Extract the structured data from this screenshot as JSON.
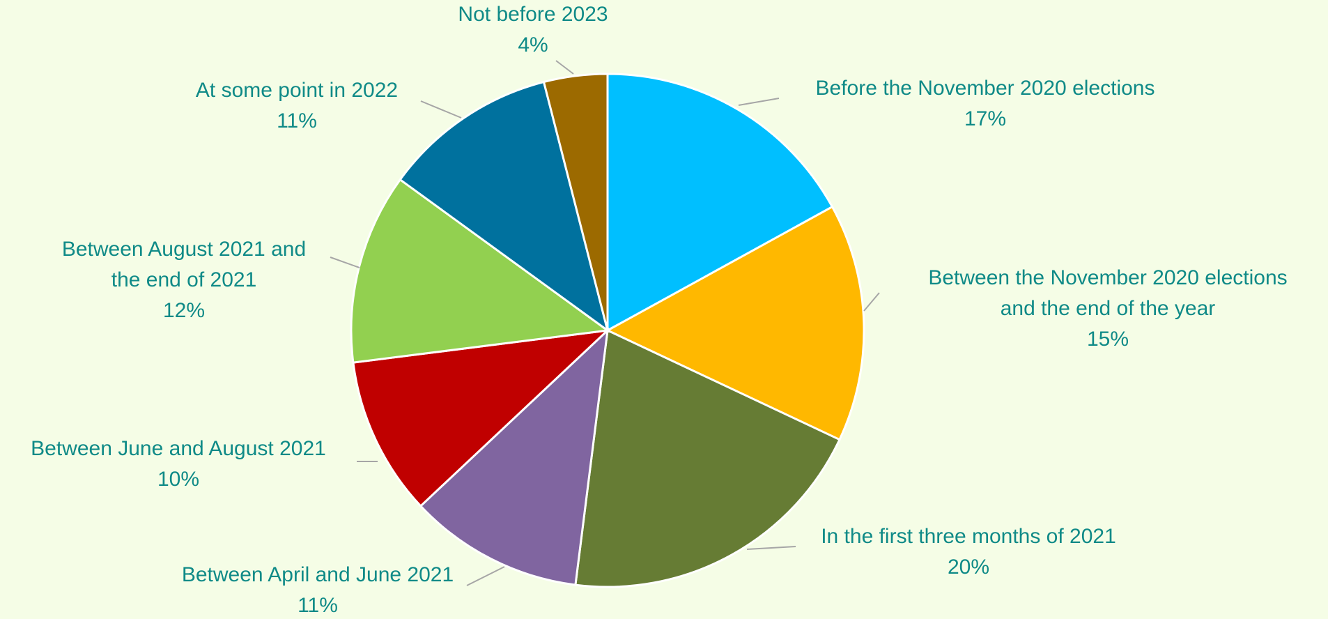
{
  "chart_data": {
    "type": "pie",
    "start": "12 o'clock",
    "direction": "clockwise",
    "legend": "none",
    "data_labels": "outside with leader lines",
    "slices": [
      {
        "label_lines": [
          "Before the November 2020 elections"
        ],
        "value": 17,
        "value_label": "17%",
        "color": "#00bfff"
      },
      {
        "label_lines": [
          "Between the November 2020 elections",
          "and the end of the year"
        ],
        "value": 15,
        "value_label": "15%",
        "color": "#ffb800"
      },
      {
        "label_lines": [
          "In the first three months of 2021"
        ],
        "value": 20,
        "value_label": "20%",
        "color": "#667c34"
      },
      {
        "label_lines": [
          "Between April and June 2021"
        ],
        "value": 11,
        "value_label": "11%",
        "color": "#8065a0"
      },
      {
        "label_lines": [
          "Between June and August 2021"
        ],
        "value": 10,
        "value_label": "10%",
        "color": "#c00000"
      },
      {
        "label_lines": [
          "Between August 2021 and",
          "the end of 2021"
        ],
        "value": 12,
        "value_label": "12%",
        "color": "#92d050"
      },
      {
        "label_lines": [
          "At some point in 2022"
        ],
        "value": 11,
        "value_label": "11%",
        "color": "#00719e"
      },
      {
        "label_lines": [
          "Not before 2023"
        ],
        "value": 4,
        "value_label": "4%",
        "color": "#9c6a00"
      }
    ],
    "label_color": "#0f8a87",
    "leader_color": "#a6a6a6",
    "background": "#f5fde6"
  }
}
